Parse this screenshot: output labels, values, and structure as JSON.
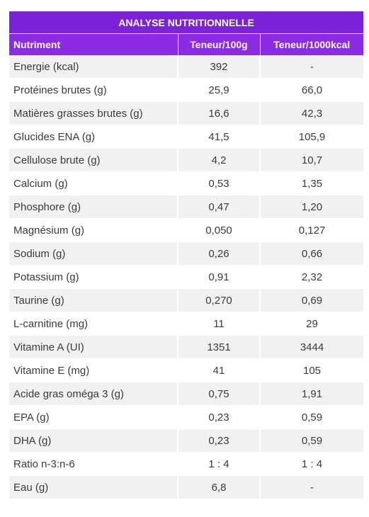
{
  "table": {
    "title": "ANALYSE NUTRITIONNELLE",
    "headers": [
      "Nutriment",
      "Teneur/100g",
      "Teneur/1000kcal"
    ],
    "rows": [
      [
        "Energie (kcal)",
        "392",
        "-"
      ],
      [
        "Protéines brutes (g)",
        "25,9",
        "66,0"
      ],
      [
        "Matières grasses brutes (g)",
        "16,6",
        "42,3"
      ],
      [
        "Glucides ENA (g)",
        "41,5",
        "105,9"
      ],
      [
        "Cellulose brute (g)",
        "4,2",
        "10,7"
      ],
      [
        "Calcium (g)",
        "0,53",
        "1,35"
      ],
      [
        "Phosphore (g)",
        "0,47",
        "1,20"
      ],
      [
        "Magnésium (g)",
        "0,050",
        "0,127"
      ],
      [
        "Sodium (g)",
        "0,26",
        "0,66"
      ],
      [
        "Potassium (g)",
        "0,91",
        "2,32"
      ],
      [
        "Taurine (g)",
        "0,270",
        "0,69"
      ],
      [
        "L-carnitine (mg)",
        "11",
        "29"
      ],
      [
        "Vitamine A (UI)",
        "1351",
        "3444"
      ],
      [
        "Vitamine E (mg)",
        "41",
        "105"
      ],
      [
        "Acide gras oméga 3 (g)",
        "0,75",
        "1,91"
      ],
      [
        "EPA (g)",
        "0,23",
        "0,59"
      ],
      [
        "DHA (g)",
        "0,23",
        "0,59"
      ],
      [
        "Ratio n-3:n-6",
        "1 : 4",
        "1 : 4"
      ],
      [
        "Eau (g)",
        "6,8",
        "-"
      ]
    ],
    "colors": {
      "title_bg": "#7b22d6",
      "header_bg": "#8b2be2",
      "stripe_bg": "#f1f1f1"
    }
  }
}
